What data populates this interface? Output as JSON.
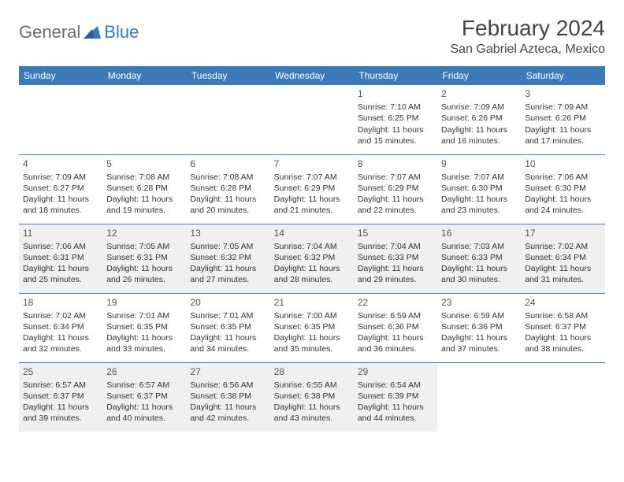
{
  "logo": {
    "part1": "General",
    "part2": "Blue"
  },
  "title": "February 2024",
  "location": "San Gabriel Azteca, Mexico",
  "colors": {
    "header_bg": "#3a7ab8",
    "header_text": "#ffffff",
    "border": "#3a7ab8",
    "shaded_bg": "#f0f0f0",
    "text": "#333333",
    "logo_gray": "#6b6b6b",
    "logo_blue": "#3a7ab8"
  },
  "day_headers": [
    "Sunday",
    "Monday",
    "Tuesday",
    "Wednesday",
    "Thursday",
    "Friday",
    "Saturday"
  ],
  "weeks": [
    [
      {
        "day": "",
        "lines": [],
        "shaded": false
      },
      {
        "day": "",
        "lines": [],
        "shaded": false
      },
      {
        "day": "",
        "lines": [],
        "shaded": false
      },
      {
        "day": "",
        "lines": [],
        "shaded": false
      },
      {
        "day": "1",
        "lines": [
          "Sunrise: 7:10 AM",
          "Sunset: 6:25 PM",
          "Daylight: 11 hours and 15 minutes."
        ],
        "shaded": false
      },
      {
        "day": "2",
        "lines": [
          "Sunrise: 7:09 AM",
          "Sunset: 6:26 PM",
          "Daylight: 11 hours and 16 minutes."
        ],
        "shaded": false
      },
      {
        "day": "3",
        "lines": [
          "Sunrise: 7:09 AM",
          "Sunset: 6:26 PM",
          "Daylight: 11 hours and 17 minutes."
        ],
        "shaded": false
      }
    ],
    [
      {
        "day": "4",
        "lines": [
          "Sunrise: 7:09 AM",
          "Sunset: 6:27 PM",
          "Daylight: 11 hours and 18 minutes."
        ],
        "shaded": false
      },
      {
        "day": "5",
        "lines": [
          "Sunrise: 7:08 AM",
          "Sunset: 6:28 PM",
          "Daylight: 11 hours and 19 minutes."
        ],
        "shaded": false
      },
      {
        "day": "6",
        "lines": [
          "Sunrise: 7:08 AM",
          "Sunset: 6:28 PM",
          "Daylight: 11 hours and 20 minutes."
        ],
        "shaded": false
      },
      {
        "day": "7",
        "lines": [
          "Sunrise: 7:07 AM",
          "Sunset: 6:29 PM",
          "Daylight: 11 hours and 21 minutes."
        ],
        "shaded": false
      },
      {
        "day": "8",
        "lines": [
          "Sunrise: 7:07 AM",
          "Sunset: 6:29 PM",
          "Daylight: 11 hours and 22 minutes."
        ],
        "shaded": false
      },
      {
        "day": "9",
        "lines": [
          "Sunrise: 7:07 AM",
          "Sunset: 6:30 PM",
          "Daylight: 11 hours and 23 minutes."
        ],
        "shaded": false
      },
      {
        "day": "10",
        "lines": [
          "Sunrise: 7:06 AM",
          "Sunset: 6:30 PM",
          "Daylight: 11 hours and 24 minutes."
        ],
        "shaded": false
      }
    ],
    [
      {
        "day": "11",
        "lines": [
          "Sunrise: 7:06 AM",
          "Sunset: 6:31 PM",
          "Daylight: 11 hours and 25 minutes."
        ],
        "shaded": true
      },
      {
        "day": "12",
        "lines": [
          "Sunrise: 7:05 AM",
          "Sunset: 6:31 PM",
          "Daylight: 11 hours and 26 minutes."
        ],
        "shaded": true
      },
      {
        "day": "13",
        "lines": [
          "Sunrise: 7:05 AM",
          "Sunset: 6:32 PM",
          "Daylight: 11 hours and 27 minutes."
        ],
        "shaded": true
      },
      {
        "day": "14",
        "lines": [
          "Sunrise: 7:04 AM",
          "Sunset: 6:32 PM",
          "Daylight: 11 hours and 28 minutes."
        ],
        "shaded": true
      },
      {
        "day": "15",
        "lines": [
          "Sunrise: 7:04 AM",
          "Sunset: 6:33 PM",
          "Daylight: 11 hours and 29 minutes."
        ],
        "shaded": true
      },
      {
        "day": "16",
        "lines": [
          "Sunrise: 7:03 AM",
          "Sunset: 6:33 PM",
          "Daylight: 11 hours and 30 minutes."
        ],
        "shaded": true
      },
      {
        "day": "17",
        "lines": [
          "Sunrise: 7:02 AM",
          "Sunset: 6:34 PM",
          "Daylight: 11 hours and 31 minutes."
        ],
        "shaded": true
      }
    ],
    [
      {
        "day": "18",
        "lines": [
          "Sunrise: 7:02 AM",
          "Sunset: 6:34 PM",
          "Daylight: 11 hours and 32 minutes."
        ],
        "shaded": false
      },
      {
        "day": "19",
        "lines": [
          "Sunrise: 7:01 AM",
          "Sunset: 6:35 PM",
          "Daylight: 11 hours and 33 minutes."
        ],
        "shaded": false
      },
      {
        "day": "20",
        "lines": [
          "Sunrise: 7:01 AM",
          "Sunset: 6:35 PM",
          "Daylight: 11 hours and 34 minutes."
        ],
        "shaded": false
      },
      {
        "day": "21",
        "lines": [
          "Sunrise: 7:00 AM",
          "Sunset: 6:35 PM",
          "Daylight: 11 hours and 35 minutes."
        ],
        "shaded": false
      },
      {
        "day": "22",
        "lines": [
          "Sunrise: 6:59 AM",
          "Sunset: 6:36 PM",
          "Daylight: 11 hours and 36 minutes."
        ],
        "shaded": false
      },
      {
        "day": "23",
        "lines": [
          "Sunrise: 6:59 AM",
          "Sunset: 6:36 PM",
          "Daylight: 11 hours and 37 minutes."
        ],
        "shaded": false
      },
      {
        "day": "24",
        "lines": [
          "Sunrise: 6:58 AM",
          "Sunset: 6:37 PM",
          "Daylight: 11 hours and 38 minutes."
        ],
        "shaded": false
      }
    ],
    [
      {
        "day": "25",
        "lines": [
          "Sunrise: 6:57 AM",
          "Sunset: 6:37 PM",
          "Daylight: 11 hours and 39 minutes."
        ],
        "shaded": true
      },
      {
        "day": "26",
        "lines": [
          "Sunrise: 6:57 AM",
          "Sunset: 6:37 PM",
          "Daylight: 11 hours and 40 minutes."
        ],
        "shaded": true
      },
      {
        "day": "27",
        "lines": [
          "Sunrise: 6:56 AM",
          "Sunset: 6:38 PM",
          "Daylight: 11 hours and 42 minutes."
        ],
        "shaded": true
      },
      {
        "day": "28",
        "lines": [
          "Sunrise: 6:55 AM",
          "Sunset: 6:38 PM",
          "Daylight: 11 hours and 43 minutes."
        ],
        "shaded": true
      },
      {
        "day": "29",
        "lines": [
          "Sunrise: 6:54 AM",
          "Sunset: 6:39 PM",
          "Daylight: 11 hours and 44 minutes."
        ],
        "shaded": true
      },
      {
        "day": "",
        "lines": [],
        "shaded": false
      },
      {
        "day": "",
        "lines": [],
        "shaded": false
      }
    ]
  ]
}
